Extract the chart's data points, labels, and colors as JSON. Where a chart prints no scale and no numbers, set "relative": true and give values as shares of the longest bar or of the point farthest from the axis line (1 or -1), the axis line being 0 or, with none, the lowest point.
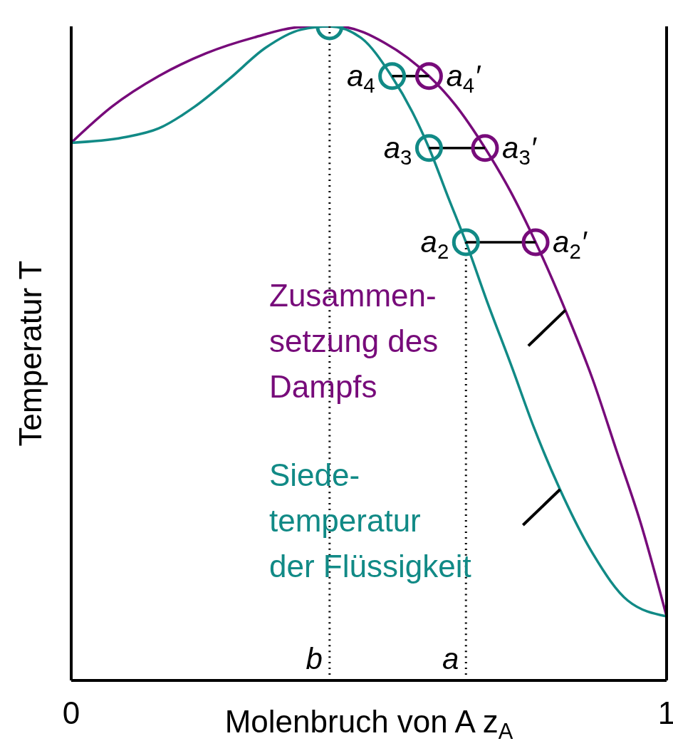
{
  "chart_data": {
    "type": "line",
    "relative": true,
    "xlabel": "Molenbruch von A z$_{A}$",
    "ylabel": "Temperatur T",
    "xlim": [
      0,
      1
    ],
    "xticks": [
      0,
      1
    ],
    "series": [
      {
        "name": "Zusammen-\nsetzung des\nDampfs",
        "color": "#770b7a",
        "marker": "none",
        "x": [
          0,
          0.068,
          0.147,
          0.227,
          0.307,
          0.386,
          0.434,
          0.458,
          0.526,
          0.601,
          0.645,
          0.695,
          0.737,
          0.78,
          0.83,
          0.876,
          0.916,
          0.956,
          1
        ],
        "values": [
          0.822,
          0.877,
          0.924,
          0.959,
          0.983,
          0.999,
          1.0,
          0.999,
          0.975,
          0.924,
          0.88,
          0.814,
          0.749,
          0.67,
          0.566,
          0.46,
          0.351,
          0.242,
          0.098
        ]
      },
      {
        "name": "Siede-\ntemperatur\nder Flüssigkeit",
        "color": "#118a86",
        "marker": "none",
        "x": [
          0,
          0.087,
          0.147,
          0.207,
          0.266,
          0.326,
          0.386,
          0.434,
          0.486,
          0.538,
          0.573,
          0.601,
          0.633,
          0.663,
          0.697,
          0.741,
          0.777,
          0.821,
          0.876,
          0.935,
          1
        ],
        "values": [
          0.822,
          0.83,
          0.844,
          0.877,
          0.92,
          0.967,
          0.995,
          1.0,
          0.983,
          0.924,
          0.869,
          0.814,
          0.739,
          0.67,
          0.583,
          0.477,
          0.387,
          0.292,
          0.194,
          0.122,
          0.098
        ]
      },
      {
        "type": "line",
        "color": "#000000",
        "marker": "none",
        "x": [
          0.539,
          0.601
        ],
        "values": [
          0.924,
          0.924
        ]
      },
      {
        "type": "line",
        "color": "#000000",
        "marker": "none",
        "x": [
          0.601,
          0.695
        ],
        "values": [
          0.814,
          0.814
        ]
      },
      {
        "type": "line",
        "color": "#000000",
        "marker": "none",
        "x": [
          0.663,
          0.78
        ],
        "values": [
          0.67,
          0.67
        ]
      },
      {
        "type": "line",
        "color": "#000000",
        "marker": "none",
        "line_style": "dotted",
        "x": [
          0.434,
          0.434
        ],
        "values": [
          0,
          1.0
        ]
      },
      {
        "type": "line",
        "color": "#000000",
        "marker": "none",
        "line_style": "dotted",
        "x": [
          0.663,
          0.663
        ],
        "values": [
          0,
          0.67
        ]
      },
      {
        "type": "scatter",
        "color": "#118a86",
        "marker": "circle",
        "x": [
          0.434,
          0.539,
          0.601,
          0.663
        ],
        "values": [
          1.0,
          0.924,
          0.814,
          0.67
        ]
      },
      {
        "type": "scatter",
        "color": "#770b7a",
        "marker": "circle",
        "x": [
          0.601,
          0.695,
          0.78
        ],
        "values": [
          0.924,
          0.814,
          0.67
        ]
      }
    ],
    "annotations": [
      {
        "text": "a$_{4}$",
        "x": 0.539,
        "y": 0.924
      },
      {
        "text": "a$_{3}$",
        "x": 0.601,
        "y": 0.814
      },
      {
        "text": "a$_{2}$",
        "x": 0.663,
        "y": 0.67
      },
      {
        "text": "a$_{4}$′",
        "x": 0.601,
        "y": 0.924
      },
      {
        "text": "a$_{3}$′",
        "x": 0.695,
        "y": 0.814
      },
      {
        "text": "a$_{2}$′",
        "x": 0.78,
        "y": 0.67
      },
      {
        "text": "b",
        "x": 0.434,
        "y": 0
      },
      {
        "text": "a",
        "x": 0.663,
        "y": 0
      }
    ]
  }
}
